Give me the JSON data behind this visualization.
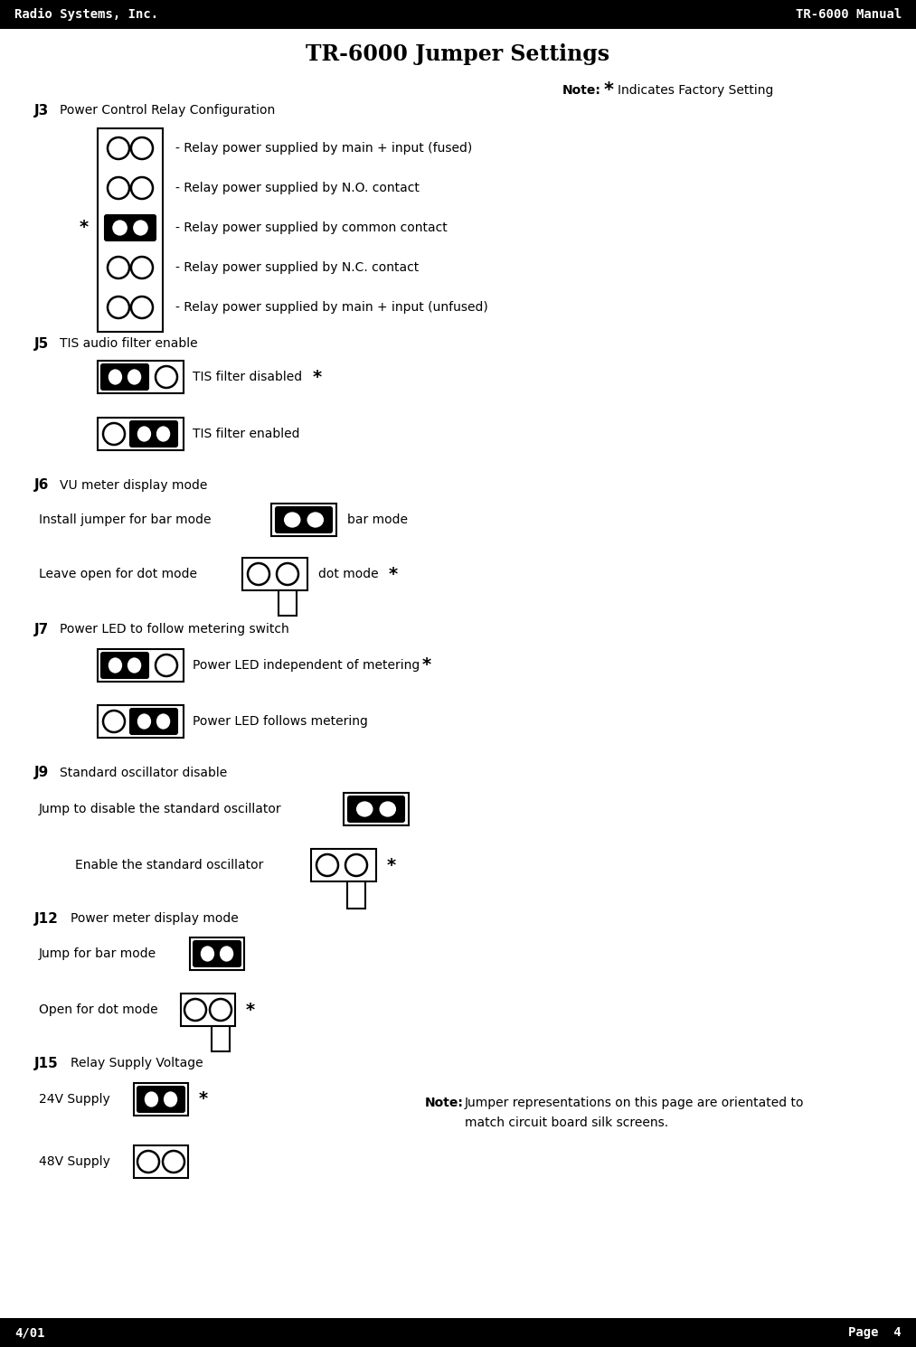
{
  "title": "TR-6000 Jumper Settings",
  "header_left": "Radio Systems, Inc.",
  "header_right": "TR-6000 Manual",
  "footer_left": "4/01",
  "footer_right": "Page  4",
  "header_bg": "#000000",
  "header_fg": "#ffffff",
  "body_bg": "#ffffff",
  "body_fg": "#000000"
}
